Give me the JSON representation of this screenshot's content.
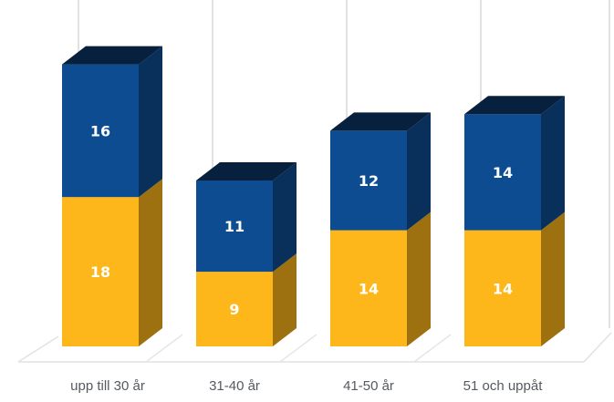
{
  "chart_data": {
    "type": "bar",
    "stacked": true,
    "three_d": true,
    "categories": [
      "upp till 30 år",
      "31-40 år",
      "41-50 år",
      "51 och uppåt"
    ],
    "series": [
      {
        "values": [
          18,
          9,
          14,
          14
        ],
        "color": "#FDB71A"
      },
      {
        "values": [
          16,
          11,
          12,
          14
        ],
        "color": "#0E4C92"
      }
    ],
    "ylim": [
      0,
      36
    ],
    "grid": true,
    "legend": "none",
    "data_labels": true
  }
}
